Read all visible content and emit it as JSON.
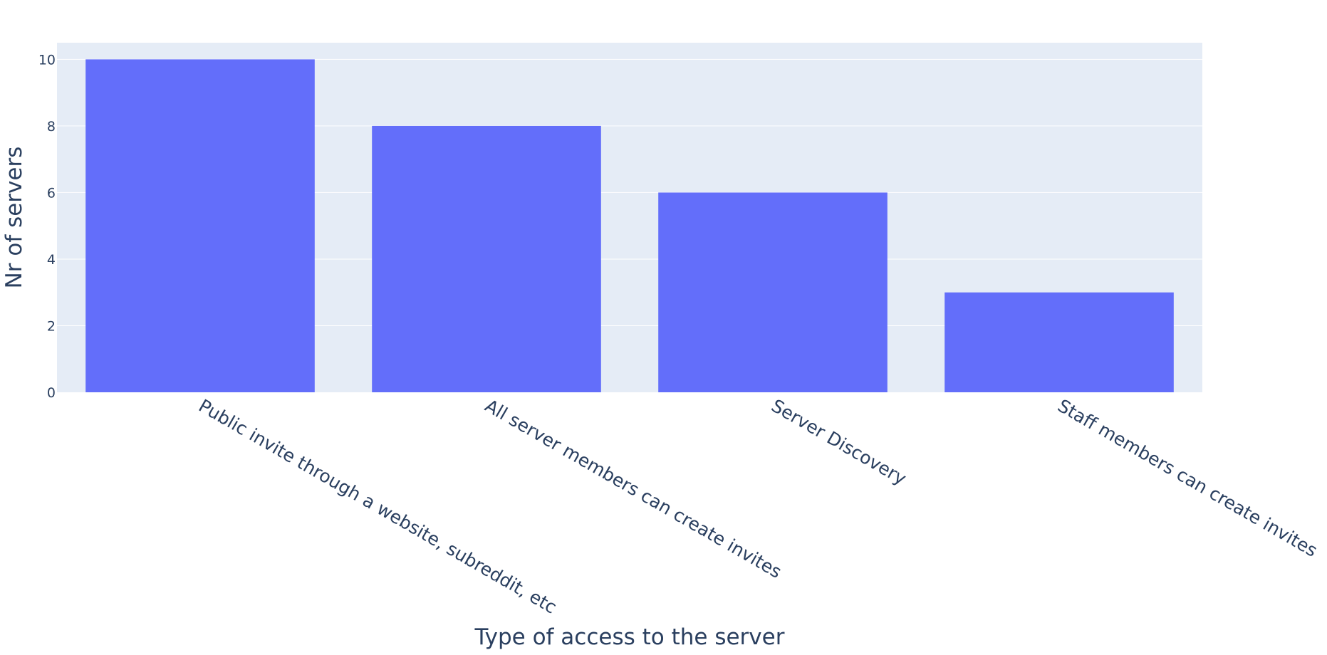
{
  "chart_data": {
    "type": "bar",
    "title": "",
    "xlabel": "Type of access to the server",
    "ylabel": "Nr of servers",
    "categories": [
      "Public invite through a website, subreddit, etc",
      "All server members can create invites",
      "Server Discovery",
      "Staff members can create invites"
    ],
    "values": [
      10,
      8,
      6,
      3
    ],
    "ylim": [
      0,
      10.5
    ],
    "yticks": [
      0,
      2,
      4,
      6,
      8,
      10
    ],
    "grid": true,
    "legend": "none",
    "colors": {
      "bar": "#636efa",
      "plot_background": "#e5ecf6",
      "gridline": "#ffffff",
      "text": "#2a3f5f"
    }
  }
}
